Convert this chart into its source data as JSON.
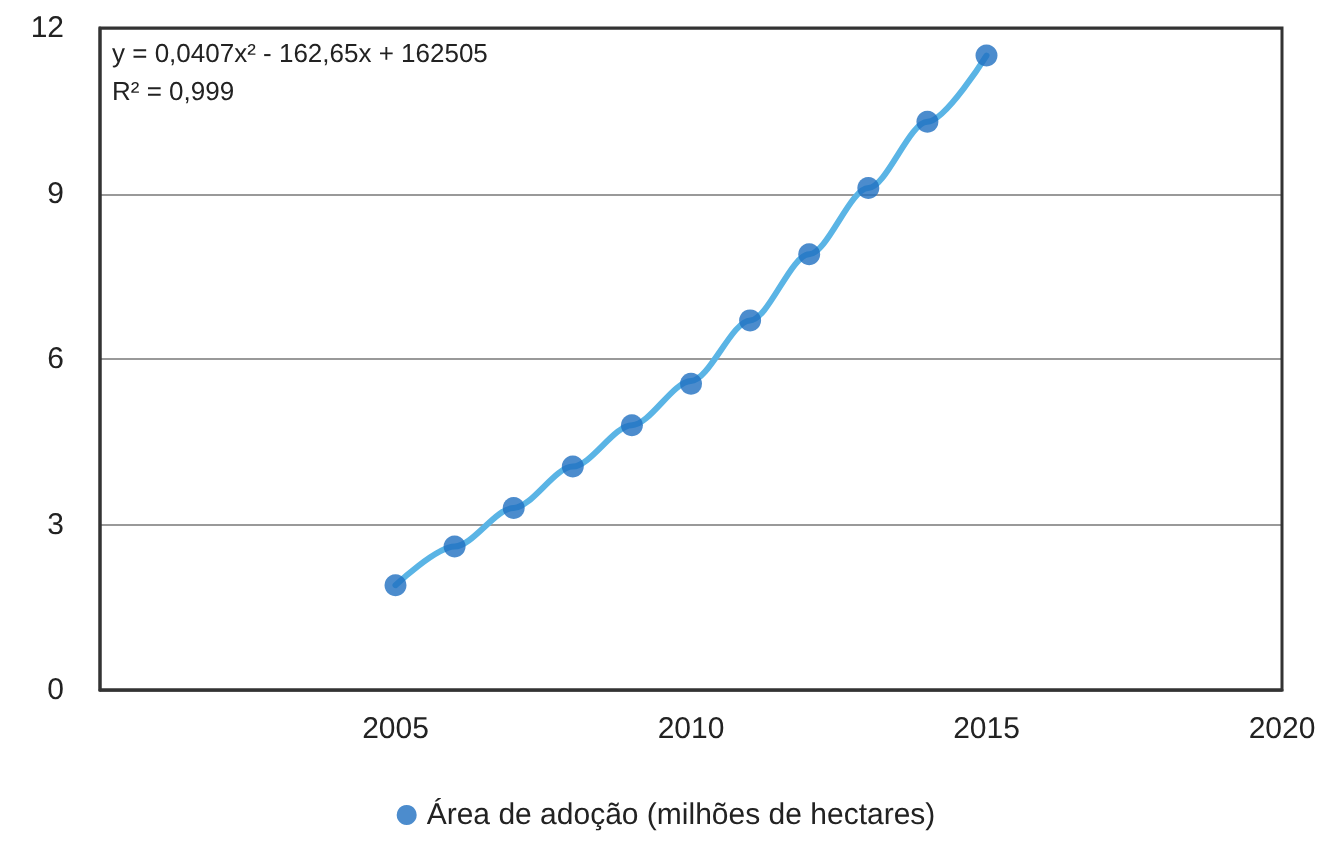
{
  "chart_data": {
    "type": "scatter",
    "x": [
      2005,
      2006,
      2007,
      2008,
      2009,
      2010,
      2011,
      2012,
      2013,
      2014,
      2015
    ],
    "series": [
      {
        "name": "Área de adoção (milhões de hectares)",
        "color": "#1f6fc0",
        "marker": "circle",
        "values": [
          1.9,
          2.6,
          3.3,
          4.05,
          4.8,
          5.55,
          6.7,
          7.9,
          9.1,
          10.3,
          11.5
        ]
      },
      {
        "type": "line",
        "color": "#5ab4e5",
        "line_style": "solid",
        "marker": "none",
        "x": [
          2005,
          2006,
          2007,
          2008,
          2009,
          2010,
          2011,
          2012,
          2013,
          2014,
          2015
        ],
        "values": [
          1.9,
          2.6,
          3.3,
          4.05,
          4.8,
          5.6,
          6.7,
          7.9,
          9.1,
          10.3,
          11.5
        ]
      }
    ],
    "annotations": [
      "y = 0,0407x² - 162,65x + 162505",
      "R² = 0,999"
    ],
    "xlim": [
      2000,
      2020
    ],
    "xticks": [
      2005,
      2010,
      2015,
      2020
    ],
    "ylim": [
      0,
      12
    ],
    "yticks": [
      0,
      3,
      6,
      9,
      12
    ],
    "grid": "y",
    "legend": "bottom"
  }
}
